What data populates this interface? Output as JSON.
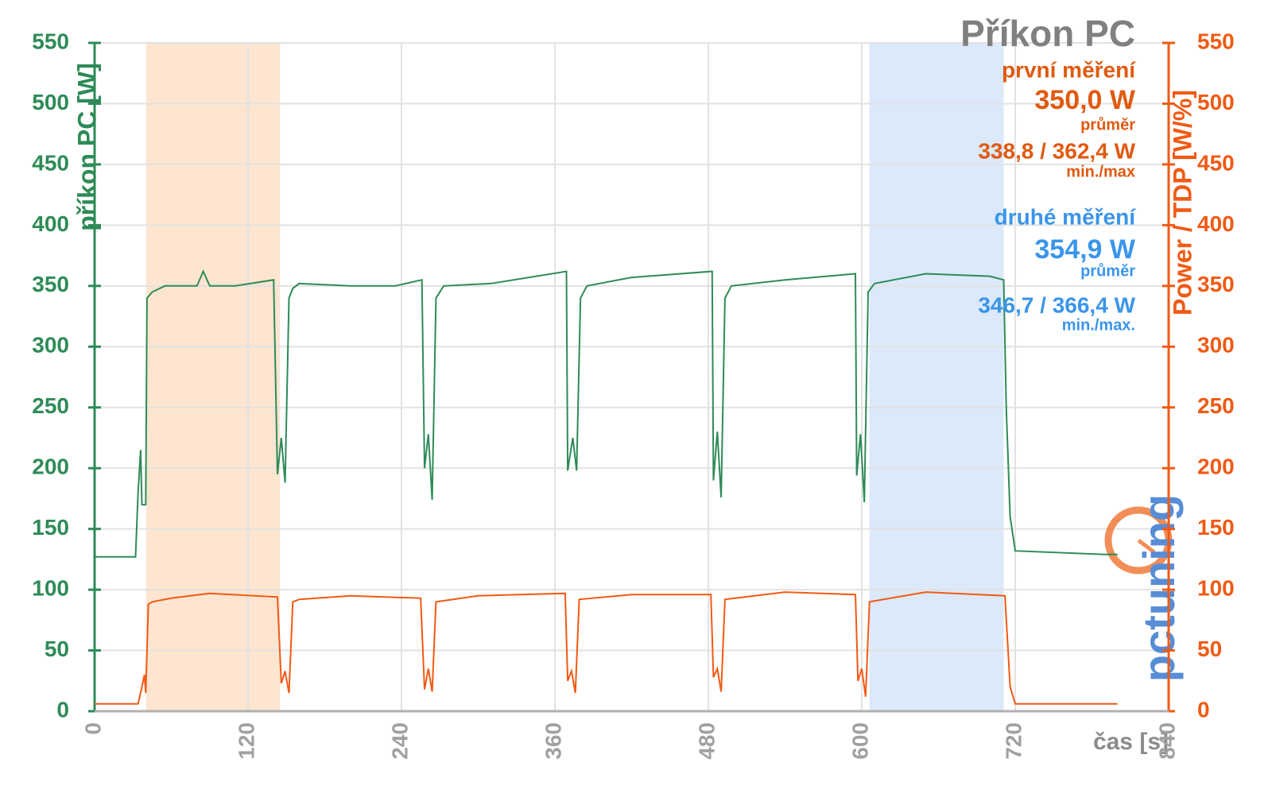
{
  "chart_data": {
    "type": "line",
    "title": "Příkon PC",
    "y_label": "příkon PC [W]",
    "y2_label": "Power / TDP [W/%]",
    "x_label": "čas [s]",
    "logo": "pctuning",
    "xlim": [
      0,
      840
    ],
    "xticks": [
      0,
      120,
      240,
      360,
      480,
      600,
      720,
      840
    ],
    "ylim": [
      0,
      550
    ],
    "yticks": [
      0,
      50,
      100,
      150,
      200,
      250,
      300,
      350,
      400,
      450,
      500,
      550
    ],
    "y2lim": [
      0,
      550
    ],
    "y2ticks": [
      0,
      50,
      100,
      150,
      200,
      250,
      300,
      350,
      400,
      450,
      500,
      550
    ],
    "y_color": "#2e8b57",
    "y2_color": "#f05a14",
    "grid": true,
    "spans": [
      {
        "x": [
          40.4,
          145
        ],
        "color": "#fde5d0"
      },
      {
        "x": [
          606,
          711
        ],
        "color": "#dbe9fb"
      }
    ],
    "annotations": [
      {
        "text": "první měření",
        "color": "#e05a10"
      },
      {
        "text": "350,0 W",
        "color": "#e05a10"
      },
      {
        "text": "průměr",
        "color": "#e05a10"
      },
      {
        "text": "338,8 / 362,4 W",
        "color": "#e05a10"
      },
      {
        "text": "min./max",
        "color": "#e05a10"
      },
      {
        "text": "druhé měření",
        "color": "#3a95e8"
      },
      {
        "text": "354,9 W",
        "color": "#3a95e8"
      },
      {
        "text": "průměr",
        "color": "#3a95e8"
      },
      {
        "text": "346,7 / 366,4 W",
        "color": "#3a95e8"
      },
      {
        "text": "min./max.",
        "color": "#3a95e8"
      }
    ],
    "series": [
      {
        "color": "#2e8b57",
        "x": [
          0,
          32,
          34,
          36,
          37,
          40,
          41,
          45,
          55,
          80,
          85,
          90,
          110,
          140,
          143,
          146,
          149,
          152,
          155,
          160,
          200,
          235,
          256,
          258,
          261,
          264,
          267,
          273,
          310,
          369,
          370,
          371,
          374,
          377,
          380,
          385,
          420,
          483,
          484,
          487,
          490,
          493,
          498,
          540,
          595,
          596,
          599,
          602,
          605,
          610,
          650,
          700,
          711,
          713,
          716,
          720,
          790,
          800
        ],
        "values": [
          127,
          127,
          180,
          215,
          170,
          170,
          340,
          345,
          350,
          350,
          362,
          350,
          350,
          355,
          195,
          225,
          188,
          340,
          348,
          352,
          350,
          350,
          355,
          200,
          228,
          174,
          340,
          350,
          352,
          362,
          198,
          205,
          225,
          198,
          340,
          350,
          357,
          362,
          190,
          230,
          176,
          340,
          350,
          355,
          360,
          194,
          228,
          172,
          345,
          352,
          360,
          358,
          355,
          250,
          160,
          132,
          129,
          129
        ]
      },
      {
        "color": "#f05a14",
        "axis": "y2",
        "x": [
          0,
          34,
          37,
          39,
          40,
          42,
          45,
          60,
          90,
          143,
          146,
          149,
          152,
          155,
          160,
          200,
          255,
          258,
          261,
          264,
          267,
          300,
          368,
          370,
          373,
          376,
          379,
          420,
          482,
          484,
          487,
          490,
          493,
          540,
          595,
          597,
          600,
          603,
          606,
          650,
          712,
          716,
          720,
          800
        ],
        "values": [
          6,
          6,
          20,
          30,
          15,
          88,
          90,
          93,
          97,
          94,
          23,
          33,
          15,
          90,
          92,
          95,
          93,
          18,
          35,
          16,
          90,
          95,
          97,
          25,
          33,
          15,
          92,
          96,
          96,
          28,
          35,
          16,
          92,
          98,
          96,
          25,
          35,
          12,
          90,
          98,
          95,
          20,
          6,
          6
        ]
      }
    ]
  }
}
